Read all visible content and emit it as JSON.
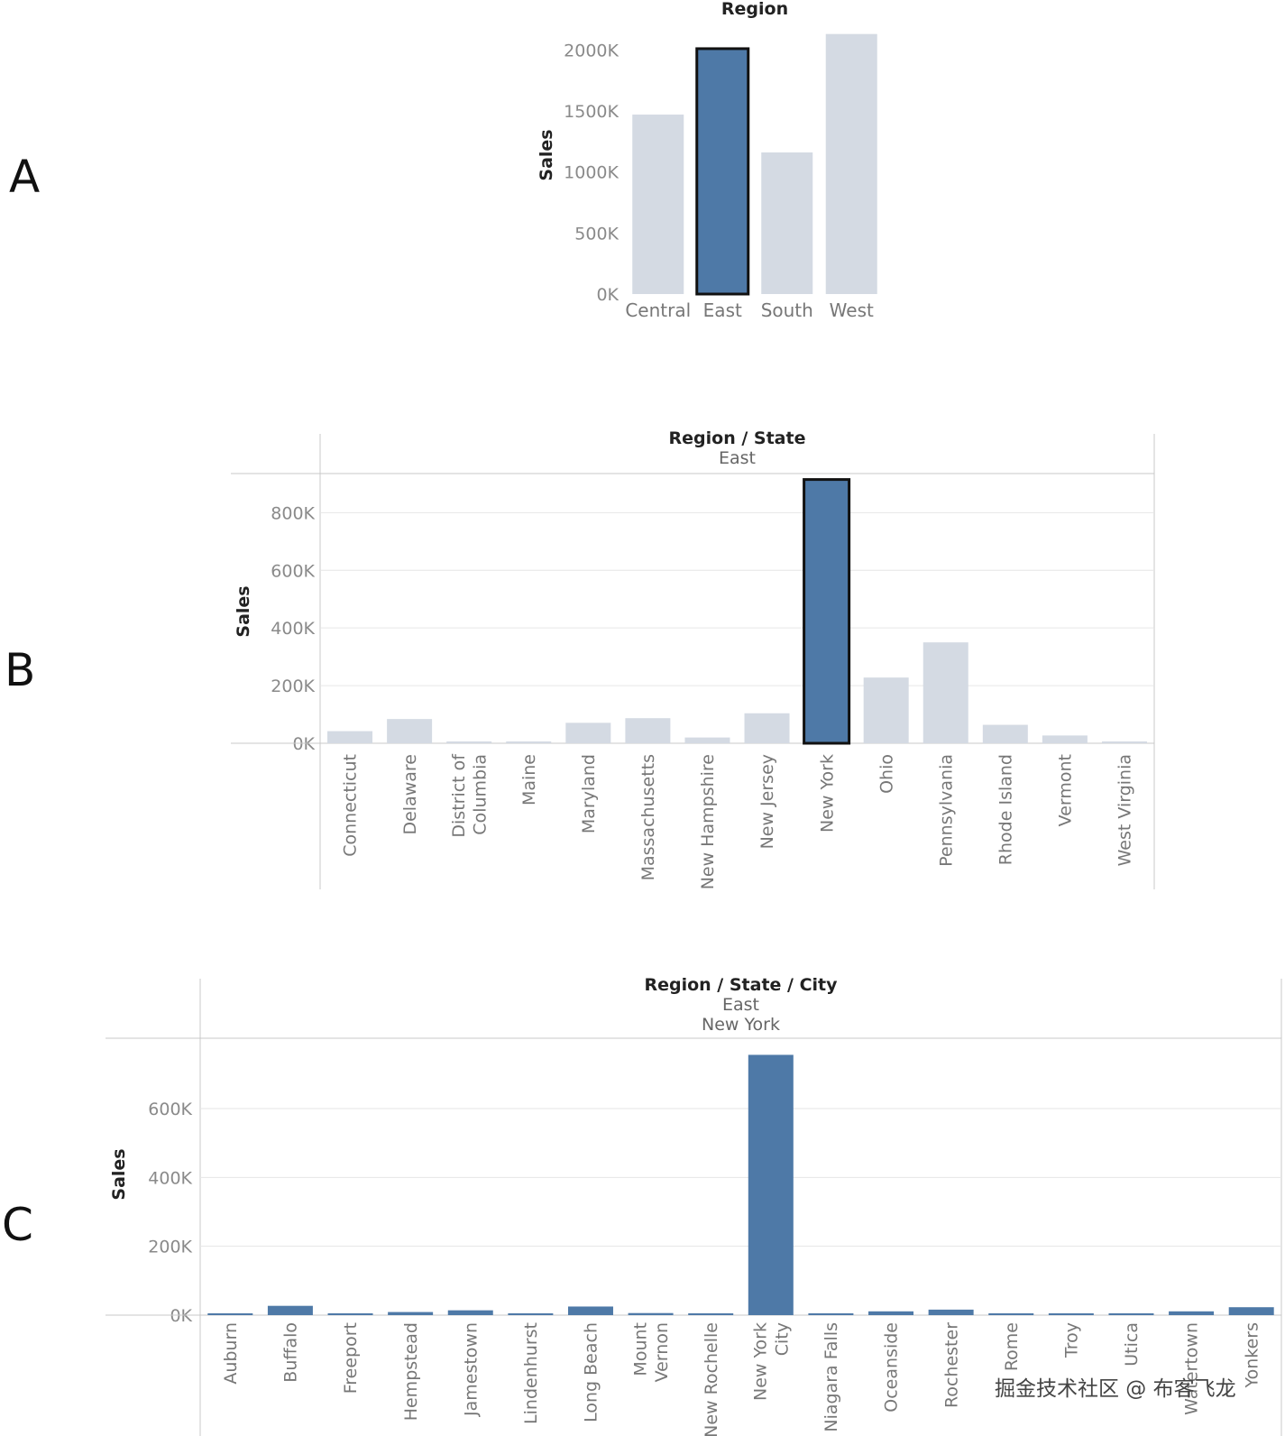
{
  "colors": {
    "highlight": "#4E79A7",
    "muted": "#D4DAE3",
    "outline": "#111111",
    "gridline": "#E6E6E6",
    "frame": "#C8C8C8"
  },
  "panel_labels": [
    "A",
    "B",
    "C"
  ],
  "watermark": "掘金技术社区 @ 布客飞龙",
  "chart_data": [
    {
      "type": "bar",
      "panel": "A",
      "header": [
        "Region"
      ],
      "ylabel": "Sales",
      "ylim": [
        0,
        2150000
      ],
      "yticks": [
        {
          "value": 0,
          "label": "0K"
        },
        {
          "value": 500000,
          "label": "500K"
        },
        {
          "value": 1000000,
          "label": "1000K"
        },
        {
          "value": 1500000,
          "label": "1500K"
        },
        {
          "value": 2000000,
          "label": "2000K"
        }
      ],
      "grid": false,
      "categories": [
        "Central",
        "East",
        "South",
        "West"
      ],
      "values": [
        1470000,
        2010000,
        1160000,
        2130000
      ],
      "selected": [
        "East"
      ]
    },
    {
      "type": "bar",
      "panel": "B",
      "header": [
        "Region / State",
        "East"
      ],
      "ylabel": "Sales",
      "ylim": [
        0,
        920000
      ],
      "yticks": [
        {
          "value": 0,
          "label": "0K"
        },
        {
          "value": 200000,
          "label": "200K"
        },
        {
          "value": 400000,
          "label": "400K"
        },
        {
          "value": 600000,
          "label": "600K"
        },
        {
          "value": 800000,
          "label": "800K"
        }
      ],
      "grid": true,
      "categories": [
        "Connecticut",
        "Delaware",
        "District of Columbia",
        "Maine",
        "Maryland",
        "Massachusetts",
        "New Hampshire",
        "New Jersey",
        "New York",
        "Ohio",
        "Pennsylvania",
        "Rhode Island",
        "Vermont",
        "West Virginia"
      ],
      "values": [
        42000,
        84000,
        6000,
        1500,
        71000,
        87000,
        20000,
        104000,
        915000,
        228000,
        350000,
        64000,
        27000,
        1500
      ],
      "selected": [
        "New York"
      ]
    },
    {
      "type": "bar",
      "panel": "C",
      "header": [
        "Region / State / City",
        "East",
        "New York"
      ],
      "ylabel": "Sales",
      "ylim": [
        0,
        765000
      ],
      "yticks": [
        {
          "value": 0,
          "label": "0K"
        },
        {
          "value": 200000,
          "label": "200K"
        },
        {
          "value": 400000,
          "label": "400K"
        },
        {
          "value": 600000,
          "label": "600K"
        }
      ],
      "grid": true,
      "categories": [
        "Auburn",
        "Buffalo",
        "Freeport",
        "Hempstead",
        "Jamestown",
        "Lindenhurst",
        "Long Beach",
        "Mount Vernon",
        "New Rochelle",
        "New York City",
        "Niagara Falls",
        "Oceanside",
        "Rochester",
        "Rome",
        "Troy",
        "Utica",
        "Watertown",
        "Yonkers"
      ],
      "values": [
        3000,
        27000,
        3000,
        9000,
        14000,
        500,
        25000,
        6000,
        3000,
        756000,
        500,
        11000,
        16000,
        2500,
        2500,
        2500,
        11000,
        23000
      ],
      "selected": []
    }
  ]
}
